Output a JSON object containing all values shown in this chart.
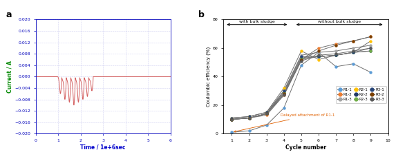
{
  "panel_a": {
    "ylabel": "Current / A",
    "xlabel": "Time / 1e+6sec",
    "xlim": [
      0,
      6.0
    ],
    "ylim": [
      -0.02,
      0.02
    ],
    "yticks": [
      -0.02,
      -0.016,
      -0.012,
      -0.008,
      -0.004,
      0,
      0.004,
      0.008,
      0.012,
      0.016,
      0.02
    ],
    "xticks": [
      0,
      1.0,
      2.0,
      3.0,
      4.0,
      5.0,
      6.0
    ],
    "line_color": "#d46060",
    "ylabel_color": "#008800",
    "xlabel_color": "#0000cc",
    "tick_color": "#0000bb",
    "grid_color": "#8888dd",
    "spikes_t": [
      1.1,
      1.3,
      1.5,
      1.7,
      1.9,
      2.1,
      2.3,
      2.5
    ],
    "spike_depth": [
      -0.006,
      -0.008,
      -0.009,
      -0.01,
      -0.009,
      -0.008,
      -0.007,
      -0.005
    ]
  },
  "panel_b": {
    "ylabel": "Coulombic efficiency (%)",
    "xlabel": "Cycle number",
    "xlim": [
      0.5,
      10
    ],
    "ylim": [
      0,
      80
    ],
    "yticks": [
      0,
      20,
      40,
      60,
      80
    ],
    "xticks": [
      1,
      2,
      3,
      4,
      5,
      6,
      7,
      8,
      9,
      10
    ],
    "annotation": "Delayed attachment of R1-1",
    "annotation_color": "#e06000",
    "with_bulk_label": "with bulk sludge",
    "without_bulk_label": "without bulk sludge",
    "series": {
      "R1-1": {
        "color": "#5b9bd5",
        "data": [
          1,
          2,
          6,
          18,
          48,
          57,
          47,
          49,
          43
        ]
      },
      "R1-2": {
        "color": "#ed7d31",
        "data": [
          10,
          11,
          13,
          27,
          52,
          60,
          63,
          65,
          68
        ]
      },
      "R1-3": {
        "color": "#a5a5a5",
        "data": [
          10,
          11,
          14,
          30,
          55,
          57,
          58,
          60,
          62
        ]
      },
      "R2-1": {
        "color": "#ffc000",
        "data": [
          11,
          12,
          15,
          32,
          58,
          52,
          55,
          57,
          65
        ]
      },
      "R2-2": {
        "color": "#203864",
        "data": [
          10,
          11,
          14,
          28,
          52,
          54,
          55,
          57,
          58
        ]
      },
      "R2-3": {
        "color": "#70ad47",
        "data": [
          10,
          11,
          14,
          29,
          53,
          54,
          55,
          57,
          58
        ]
      },
      "R3-1": {
        "color": "#264478",
        "data": [
          11,
          12,
          15,
          30,
          54,
          54,
          55,
          57,
          60
        ]
      },
      "R3-2": {
        "color": "#7b3f00",
        "data": [
          10,
          11,
          14,
          28,
          52,
          58,
          62,
          65,
          68
        ]
      },
      "R3-3": {
        "color": "#595959",
        "data": [
          10,
          11,
          14,
          27,
          51,
          55,
          56,
          58,
          60
        ]
      }
    },
    "legend_order": [
      "R1-1",
      "R1-2",
      "R1-3",
      "R2-1",
      "R2-2",
      "R2-3",
      "R3-1",
      "R3-2",
      "R3-3"
    ]
  }
}
